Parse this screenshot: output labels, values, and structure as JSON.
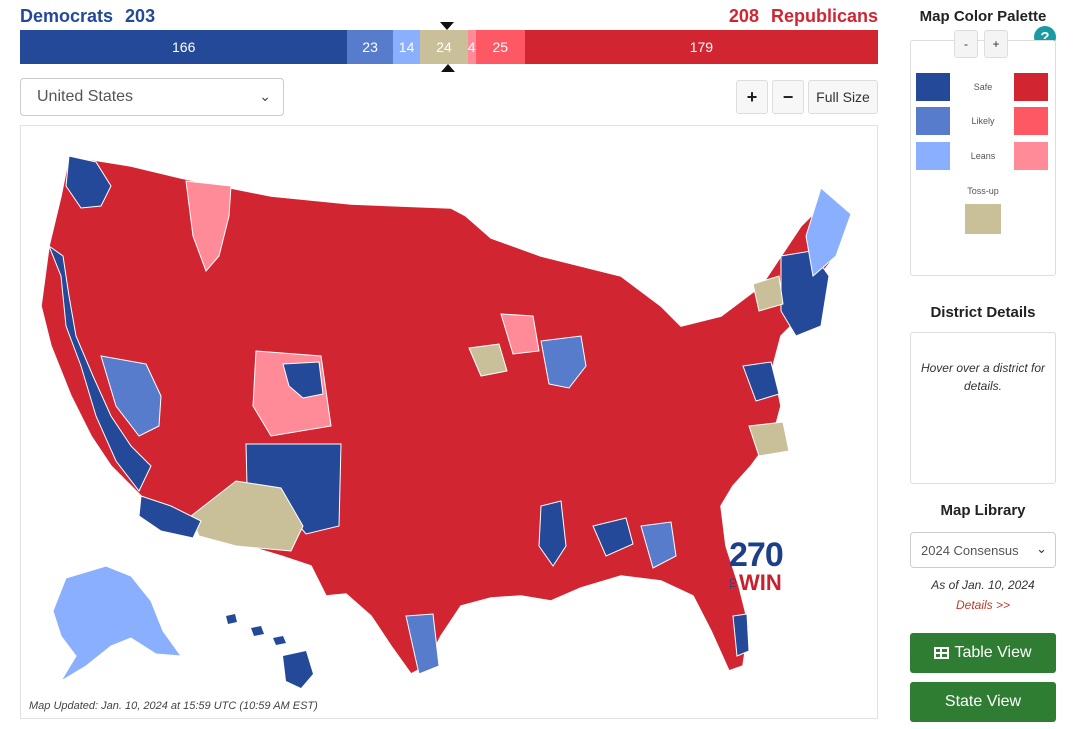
{
  "tally": {
    "dem_label": "Democrats",
    "dem_total": "203",
    "rep_label": "Republicans",
    "rep_total": "208",
    "segments": [
      {
        "key": "dem_safe",
        "value": 166,
        "label": "166",
        "color": "#244999"
      },
      {
        "key": "dem_likely",
        "value": 23,
        "label": "23",
        "color": "#577ccc"
      },
      {
        "key": "dem_leans",
        "value": 14,
        "label": "14",
        "color": "#8aafff"
      },
      {
        "key": "tossup",
        "value": 24,
        "label": "24",
        "color": "#c9c09a"
      },
      {
        "key": "rep_leans",
        "value": 4,
        "label": "4",
        "color": "#ff8b98"
      },
      {
        "key": "rep_likely",
        "value": 25,
        "label": "25",
        "color": "#ff5865"
      },
      {
        "key": "rep_safe",
        "value": 179,
        "label": "179",
        "color": "#d22532"
      }
    ]
  },
  "controls": {
    "region_select": "United States",
    "zoom_in": "+",
    "zoom_out": "−",
    "full_size": "Full Size"
  },
  "map": {
    "updated": "Map Updated: Jan. 10, 2024 at 15:59 UTC (10:59 AM EST)",
    "logo_number": "270",
    "logo_to": "TO",
    "logo_win": "WIN"
  },
  "palette": {
    "title": "Map Color Palette",
    "minus": "-",
    "plus": "+",
    "help": "?",
    "safe": "Safe",
    "likely": "Likely",
    "leans": "Leans",
    "tossup": "Toss-up",
    "colors": {
      "dem_safe": "#244999",
      "dem_likely": "#577ccc",
      "dem_leans": "#8aafff",
      "rep_safe": "#d22532",
      "rep_likely": "#ff5865",
      "rep_leans": "#ff8b98",
      "tossup": "#c9c09a"
    }
  },
  "district_details": {
    "title": "District Details",
    "hint": "Hover over a district for details."
  },
  "library": {
    "title": "Map Library",
    "selected": "2024 Consensus",
    "as_of": "As of Jan. 10, 2024",
    "details_link": "Details >>"
  },
  "buttons": {
    "table_view": "Table View",
    "state_view": "State View"
  }
}
